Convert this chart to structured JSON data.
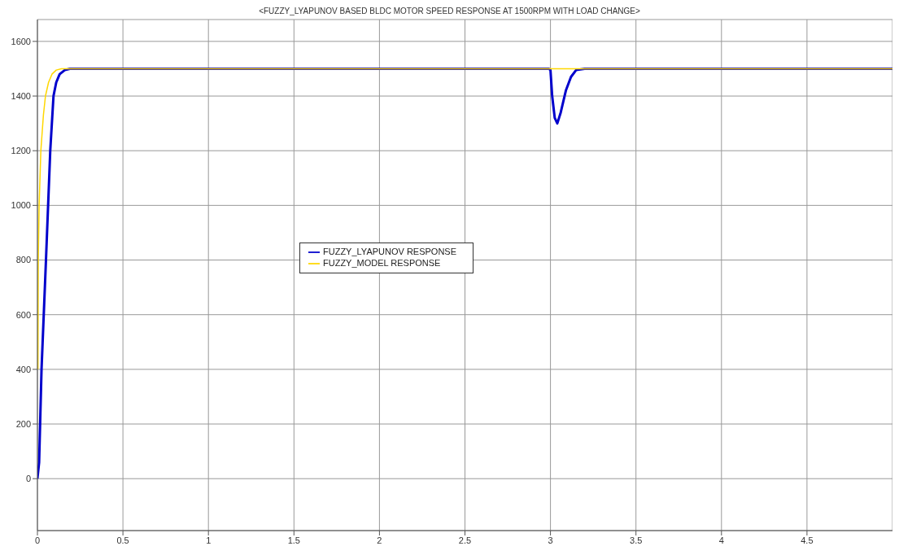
{
  "chart_data": {
    "type": "line",
    "title": "<FUZZY_LYAPUNOV BASED BLDC MOTOR SPEED RESPONSE AT 1500RPM WITH LOAD CHANGE>",
    "series": [
      {
        "name": "FUZZY_LYAPUNOV RESPONSE",
        "color": "#0000cc",
        "x": [
          0,
          0.01,
          0.024,
          0.05,
          0.075,
          0.094,
          0.11,
          0.13,
          0.16,
          0.19,
          1,
          2,
          2.99,
          3.0,
          3.01,
          3.025,
          3.04,
          3.06,
          3.09,
          3.12,
          3.15,
          3.2,
          4,
          5
        ],
        "values": [
          0,
          60,
          400,
          800,
          1200,
          1400,
          1450,
          1480,
          1495,
          1500,
          1500,
          1500,
          1500,
          1495,
          1400,
          1320,
          1300,
          1340,
          1420,
          1470,
          1495,
          1500,
          1500,
          1500
        ]
      },
      {
        "name": "FUZZY_MODEL RESPONSE",
        "color": "#ffd700",
        "x": [
          0.003,
          0.005,
          0.01,
          0.02,
          0.035,
          0.047,
          0.065,
          0.085,
          0.11,
          0.14,
          1,
          2,
          3,
          4,
          5
        ],
        "values": [
          400,
          800,
          1000,
          1200,
          1330,
          1400,
          1450,
          1480,
          1495,
          1500,
          1500,
          1500,
          1500,
          1500,
          1500
        ]
      }
    ],
    "xlim": [
      0,
      5
    ],
    "xticks": [
      0,
      0.5,
      1,
      1.5,
      2,
      2.5,
      3,
      3.5,
      4,
      4.5
    ],
    "ylim": [
      -190,
      1680
    ],
    "yticks": [
      0,
      200,
      400,
      600,
      800,
      1000,
      1200,
      1400,
      1600
    ],
    "grid": true,
    "legend": "center",
    "line_style": "solid",
    "marker": "none"
  }
}
